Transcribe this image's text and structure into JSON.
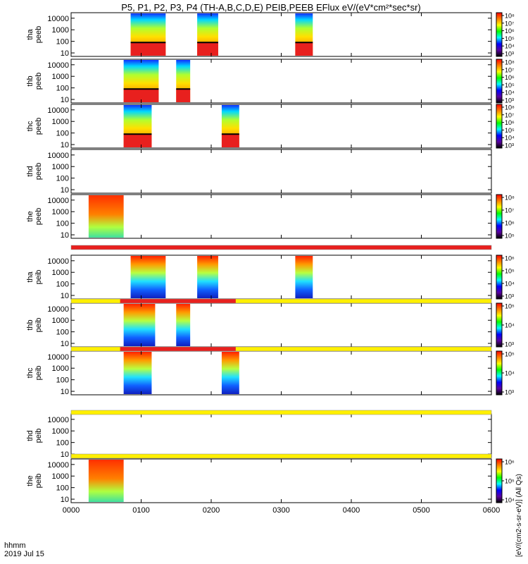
{
  "chart_data": {
    "type": "heatmap",
    "title": "P5, P1, P2, P3, P4 (TH-A,B,C,D,E) PEIB,PEEB EFlux eV/(eV*cm²*sec*sr)",
    "colorbar_unit_right": "[eV/(cm2-s-sr-eV)] (All Qs)",
    "footer": {
      "line1": "hhmm",
      "line2": "2019 Jul 15"
    },
    "x_axis": {
      "range": [
        0,
        600
      ],
      "unit": "minutes since 0000",
      "ticks": [
        0,
        100,
        200,
        300,
        400,
        500,
        600
      ],
      "tick_labels": [
        "0000",
        "0100",
        "0200",
        "0300",
        "0400",
        "0500",
        "0600"
      ]
    },
    "y_axis": {
      "scale": "log",
      "range": [
        5,
        30000
      ],
      "ticks": [
        10,
        100,
        1000,
        10000
      ],
      "tick_labels": [
        "10",
        "100",
        "1000",
        "10000"
      ]
    },
    "panels": [
      {
        "label": [
          "tha",
          "peeb"
        ],
        "species": "electron",
        "cbar": [
          "10³",
          "10⁴",
          "10⁵",
          "10⁶",
          "10⁷",
          "10⁸"
        ],
        "intervals": [
          [
            85,
            135
          ],
          [
            180,
            210
          ],
          [
            320,
            345
          ]
        ]
      },
      {
        "label": [
          "thb",
          "peeb"
        ],
        "species": "electron",
        "cbar": [
          "10³",
          "10⁴",
          "10⁵",
          "10⁶",
          "10⁷",
          "10⁸"
        ],
        "intervals": [
          [
            75,
            125
          ],
          [
            150,
            170
          ]
        ]
      },
      {
        "label": [
          "thc",
          "peeb"
        ],
        "species": "electron",
        "cbar": [
          "10³",
          "10⁴",
          "10⁵",
          "10⁶",
          "10⁷",
          "10⁸"
        ],
        "intervals": [
          [
            75,
            115
          ],
          [
            215,
            240
          ]
        ]
      },
      {
        "label": [
          "thd",
          "peeb"
        ],
        "species": "electron",
        "cbar": [],
        "intervals": []
      },
      {
        "label": [
          "the",
          "peeb"
        ],
        "species": "electron",
        "cbar": [
          "10⁵",
          "10⁶",
          "10⁷",
          "10⁸"
        ],
        "intervals": [
          [
            25,
            75
          ]
        ]
      },
      {
        "label": [
          "tha",
          "peib"
        ],
        "species": "ion",
        "cbar": [
          "10³",
          "10⁴",
          "10⁵",
          "10⁶"
        ],
        "intervals": [
          [
            85,
            135
          ],
          [
            180,
            210
          ],
          [
            320,
            345
          ]
        ]
      },
      {
        "label": [
          "thb",
          "peib"
        ],
        "species": "ion",
        "cbar": [
          "10³",
          "10⁴",
          "10⁵"
        ],
        "intervals": [
          [
            75,
            120
          ],
          [
            150,
            170
          ]
        ]
      },
      {
        "label": [
          "thc",
          "peib"
        ],
        "species": "ion",
        "cbar": [
          "10³",
          "10⁴",
          "10⁵"
        ],
        "intervals": [
          [
            75,
            115
          ],
          [
            215,
            240
          ]
        ]
      },
      {
        "label": [
          "thd",
          "peib"
        ],
        "species": "ion",
        "cbar": [],
        "intervals": []
      },
      {
        "label": [
          "the",
          "peib"
        ],
        "species": "ion",
        "cbar": [
          "10⁴",
          "10⁵",
          "10⁶"
        ],
        "intervals": [
          [
            25,
            75
          ]
        ]
      }
    ],
    "flag_bars": [
      {
        "segments": [
          {
            "range": [
              0,
              600
            ],
            "color": "#e8201e"
          }
        ]
      },
      {
        "segments": [
          {
            "range": [
              0,
              600
            ],
            "color": "#fff000"
          },
          {
            "range": [
              70,
              235
            ],
            "color": "#e8201e"
          }
        ]
      },
      {
        "segments": [
          {
            "range": [
              0,
              600
            ],
            "color": "#fff000"
          },
          {
            "range": [
              70,
              235
            ],
            "color": "#e8201e"
          }
        ]
      },
      {
        "segments": [
          {
            "range": [
              0,
              600
            ],
            "color": "#fff000"
          }
        ]
      },
      {
        "segments": [
          {
            "range": [
              0,
              600
            ],
            "color": "#fff000"
          }
        ]
      }
    ]
  }
}
